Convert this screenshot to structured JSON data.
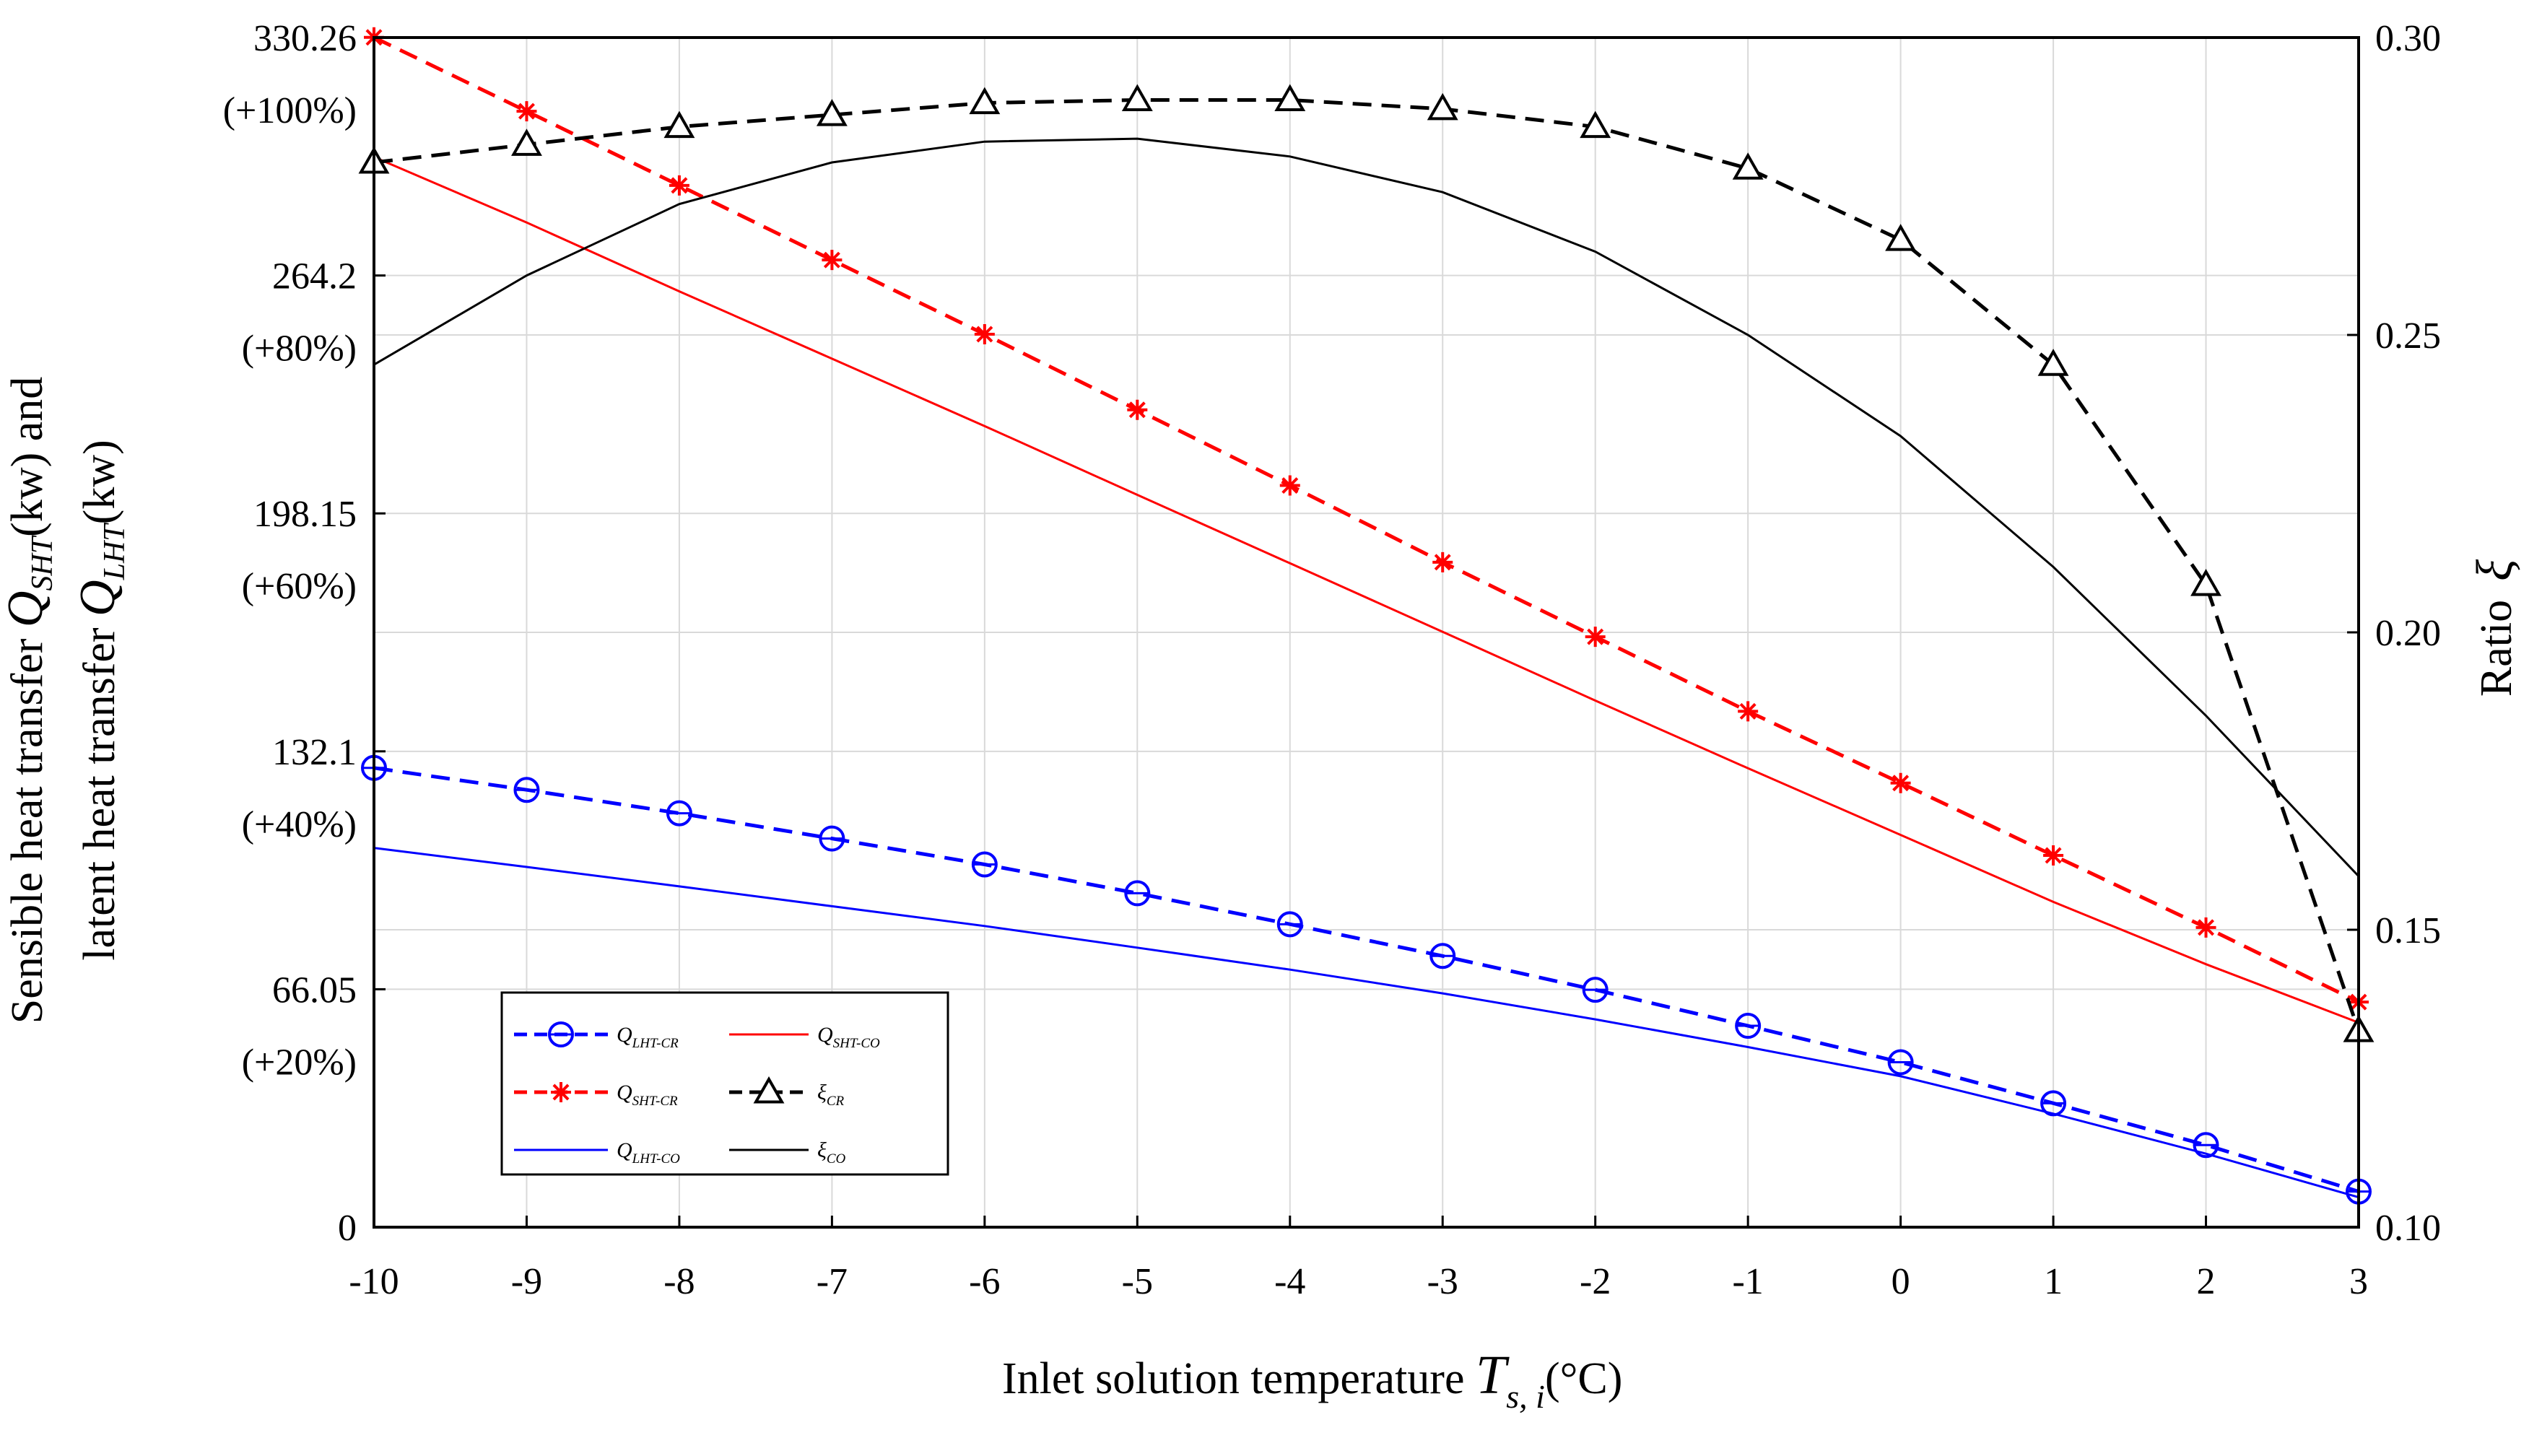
{
  "chart_data": {
    "type": "line",
    "x": [
      -10,
      -9,
      -8,
      -7,
      -6,
      -5,
      -4,
      -3,
      -2,
      -1,
      0,
      1,
      2,
      3
    ],
    "xlabel": "Inlet solution temperature T s,i (°C)",
    "xlabel_parts": {
      "text": "Inlet solution temperature ",
      "symbol": "T",
      "subscript": "s, i",
      "unit": "(°C)"
    },
    "xlim": [
      -10,
      3
    ],
    "x_ticks": [
      "-10",
      "-9",
      "-8",
      "-7",
      "-6",
      "-5",
      "-4",
      "-3",
      "-2",
      "-1",
      "0",
      "1",
      "2",
      "3"
    ],
    "y_left": {
      "label_line1": {
        "text": "Sensible heat transfer ",
        "symbol": "Q",
        "subscript": "SHT",
        "unit": "(kw) and"
      },
      "label_line2": {
        "text": "latent heat transfer ",
        "symbol": "Q",
        "subscript": "LHT",
        "unit": "(kw)"
      },
      "lim": [
        0,
        330.26
      ],
      "ticks": [
        {
          "value": 0,
          "label": "0",
          "pct": ""
        },
        {
          "value": 66.05,
          "label": "66.05",
          "pct": "(+20%)"
        },
        {
          "value": 132.1,
          "label": "132.1",
          "pct": "(+40%)"
        },
        {
          "value": 198.15,
          "label": "198.15",
          "pct": "(+60%)"
        },
        {
          "value": 264.2,
          "label": "264.2",
          "pct": "(+80%)"
        },
        {
          "value": 330.26,
          "label": "330.26",
          "pct": "(+100%)"
        }
      ]
    },
    "y_right": {
      "label": "Ratio",
      "symbol": "ξ",
      "lim": [
        0.1,
        0.3
      ],
      "ticks": [
        "0.10",
        "0.15",
        "0.20",
        "0.25",
        "0.30"
      ]
    },
    "series": [
      {
        "name": "Q_LHT-CR",
        "symbol": "Q",
        "subscript": "LHT-CR",
        "axis": "left",
        "color": "#0000ff",
        "dashed": true,
        "marker": "circle",
        "values": [
          127.5,
          121.4,
          114.9,
          107.9,
          100.7,
          92.7,
          84.1,
          75.3,
          65.9,
          55.9,
          45.8,
          34.4,
          22.8,
          9.9
        ]
      },
      {
        "name": "Q_SHT-CR",
        "symbol": "Q",
        "subscript": "SHT-CR",
        "axis": "left",
        "color": "#ff0000",
        "dashed": true,
        "marker": "star",
        "values": [
          330.3,
          309.8,
          289.2,
          268.5,
          247.9,
          226.9,
          205.9,
          184.6,
          163.9,
          143.2,
          123.3,
          103.2,
          83.2,
          62.5
        ]
      },
      {
        "name": "Q_LHT-CO",
        "symbol": "Q",
        "subscript": "LHT-CO",
        "axis": "left",
        "color": "#0000ff",
        "dashed": false,
        "marker": "none",
        "values": [
          105.3,
          100.0,
          94.6,
          89.1,
          83.6,
          77.6,
          71.5,
          64.9,
          57.7,
          50.0,
          41.9,
          31.5,
          20.4,
          8.3
        ]
      },
      {
        "name": "Q_SHT-CO",
        "symbol": "Q",
        "subscript": "SHT-CO",
        "axis": "left",
        "color": "#ff0000",
        "dashed": false,
        "marker": "none",
        "values": [
          297.1,
          278.9,
          259.8,
          241.1,
          222.4,
          203.3,
          184.3,
          165.3,
          146.2,
          127.4,
          108.9,
          90.3,
          73.0,
          56.8
        ]
      },
      {
        "name": "xi_CR",
        "symbol": "ξ",
        "subscript": "CR",
        "axis": "right",
        "color": "#000000",
        "dashed": true,
        "marker": "triangle",
        "values": [
          0.279,
          0.282,
          0.285,
          0.287,
          0.289,
          0.2895,
          0.2895,
          0.288,
          0.285,
          0.278,
          0.266,
          0.245,
          0.208,
          0.133
        ]
      },
      {
        "name": "xi_CO",
        "symbol": "ξ",
        "subscript": "CO",
        "axis": "right",
        "color": "#000000",
        "dashed": false,
        "marker": "none",
        "values": [
          0.245,
          0.26,
          0.272,
          0.279,
          0.2825,
          0.283,
          0.28,
          0.274,
          0.264,
          0.25,
          0.233,
          0.211,
          0.186,
          0.159
        ]
      }
    ],
    "legend": {
      "position": "bottom-left",
      "entries": [
        "Q_LHT-CR",
        "Q_SHT-CO",
        "Q_SHT-CR",
        "xi_CR",
        "Q_LHT-CO",
        "xi_CO"
      ]
    },
    "grid": true
  }
}
